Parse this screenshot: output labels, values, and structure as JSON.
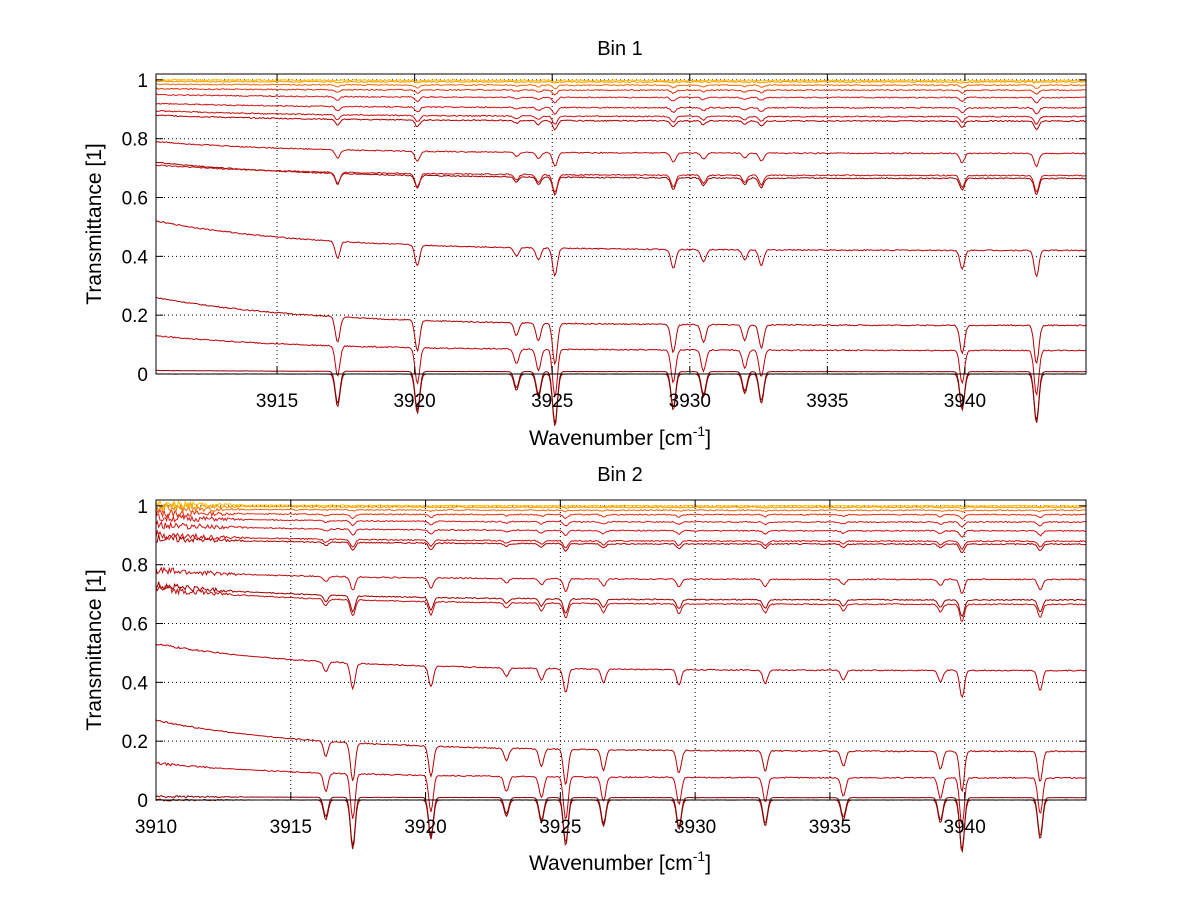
{
  "chart_data": [
    {
      "type": "line",
      "title": "Bin 1",
      "xlabel": "Wavenumber [cm",
      "xlabel_sup": "-1",
      "xlabel_end": "]",
      "ylabel": "Transmittance [1]",
      "xlim": [
        3910.6,
        3944.4
      ],
      "ylim": [
        0,
        1.02
      ],
      "xticks": [
        3915,
        3920,
        3925,
        3930,
        3935,
        3940
      ],
      "yticks": [
        0,
        0.2,
        0.4,
        0.6,
        0.8,
        1
      ],
      "grid": true,
      "absorption_lines": [
        {
          "x": 3917.2,
          "depth": 0.5
        },
        {
          "x": 3920.1,
          "depth": 0.6
        },
        {
          "x": 3923.7,
          "depth": 0.25
        },
        {
          "x": 3924.5,
          "depth": 0.35
        },
        {
          "x": 3925.1,
          "depth": 0.8
        },
        {
          "x": 3929.4,
          "depth": 0.55
        },
        {
          "x": 3930.5,
          "depth": 0.35
        },
        {
          "x": 3932.0,
          "depth": 0.3
        },
        {
          "x": 3932.6,
          "depth": 0.45
        },
        {
          "x": 3939.9,
          "depth": 0.55
        },
        {
          "x": 3942.6,
          "depth": 0.75
        }
      ],
      "series": [
        {
          "start": 0.0,
          "end": 0.0,
          "color": "#8b0000"
        },
        {
          "start": 0.012,
          "end": 0.008,
          "color": "#8b0000"
        },
        {
          "start": 0.13,
          "end": 0.08,
          "color": "#c0000a"
        },
        {
          "start": 0.26,
          "end": 0.165,
          "color": "#b00000"
        },
        {
          "start": 0.52,
          "end": 0.42,
          "color": "#b8000a"
        },
        {
          "start": 0.72,
          "end": 0.665,
          "color": "#9a0000"
        },
        {
          "start": 0.71,
          "end": 0.675,
          "color": "#c01010"
        },
        {
          "start": 0.79,
          "end": 0.75,
          "color": "#c00a0a"
        },
        {
          "start": 0.88,
          "end": 0.86,
          "color": "#b00000"
        },
        {
          "start": 0.895,
          "end": 0.875,
          "color": "#c81010"
        },
        {
          "start": 0.92,
          "end": 0.905,
          "color": "#d01010"
        },
        {
          "start": 0.95,
          "end": 0.94,
          "color": "#d81818"
        },
        {
          "start": 0.97,
          "end": 0.965,
          "color": "#e03010"
        },
        {
          "start": 0.985,
          "end": 0.982,
          "color": "#ee6a10"
        },
        {
          "start": 0.995,
          "end": 0.993,
          "color": "#f59a00"
        },
        {
          "start": 1.0,
          "end": 0.998,
          "color": "#ffbf00"
        }
      ]
    },
    {
      "type": "line",
      "title": "Bin 2",
      "xlabel": "Wavenumber [cm",
      "xlabel_sup": "-1",
      "xlabel_end": "]",
      "ylabel": "Transmittance [1]",
      "xlim": [
        3910,
        3944.5
      ],
      "ylim": [
        0,
        1.02
      ],
      "xticks": [
        3910,
        3915,
        3920,
        3925,
        3930,
        3935,
        3940
      ],
      "yticks": [
        0,
        0.2,
        0.4,
        0.6,
        0.8,
        1
      ],
      "grid": true,
      "absorption_lines": [
        {
          "x": 3916.3,
          "depth": 0.3
        },
        {
          "x": 3917.3,
          "depth": 0.75
        },
        {
          "x": 3920.2,
          "depth": 0.6
        },
        {
          "x": 3923.0,
          "depth": 0.25
        },
        {
          "x": 3924.3,
          "depth": 0.35
        },
        {
          "x": 3925.2,
          "depth": 0.7
        },
        {
          "x": 3926.6,
          "depth": 0.4
        },
        {
          "x": 3929.4,
          "depth": 0.45
        },
        {
          "x": 3932.6,
          "depth": 0.4
        },
        {
          "x": 3935.5,
          "depth": 0.3
        },
        {
          "x": 3939.1,
          "depth": 0.35
        },
        {
          "x": 3939.9,
          "depth": 0.8
        },
        {
          "x": 3942.8,
          "depth": 0.6
        }
      ],
      "series": [
        {
          "start": 0.0,
          "end": 0.0,
          "color": "#8b0000"
        },
        {
          "start": 0.012,
          "end": 0.008,
          "color": "#8b0000"
        },
        {
          "start": 0.125,
          "end": 0.075,
          "color": "#c0000a"
        },
        {
          "start": 0.27,
          "end": 0.165,
          "color": "#b00000"
        },
        {
          "start": 0.53,
          "end": 0.44,
          "color": "#b8000a"
        },
        {
          "start": 0.73,
          "end": 0.68,
          "color": "#9a0000"
        },
        {
          "start": 0.72,
          "end": 0.665,
          "color": "#c01010"
        },
        {
          "start": 0.78,
          "end": 0.75,
          "color": "#c00a0a"
        },
        {
          "start": 0.89,
          "end": 0.87,
          "color": "#b00000"
        },
        {
          "start": 0.9,
          "end": 0.88,
          "color": "#c81010"
        },
        {
          "start": 0.935,
          "end": 0.915,
          "color": "#d01010"
        },
        {
          "start": 0.96,
          "end": 0.945,
          "color": "#d81818"
        },
        {
          "start": 0.975,
          "end": 0.97,
          "color": "#e03010"
        },
        {
          "start": 0.99,
          "end": 0.985,
          "color": "#ee6a10"
        },
        {
          "start": 1.0,
          "end": 0.995,
          "color": "#f59a00"
        },
        {
          "start": 1.005,
          "end": 1.0,
          "color": "#ffbf00"
        }
      ]
    }
  ]
}
